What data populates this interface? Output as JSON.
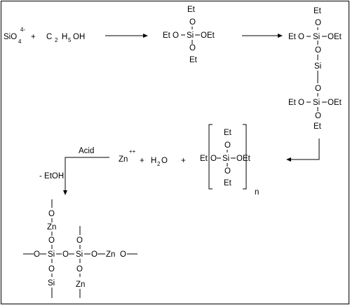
{
  "reactants": {
    "silicate": "SiO",
    "silicate_sub": "4",
    "silicate_charge": "4-",
    "plus": "+",
    "ethanol_c": "C",
    "ethanol_c_sub": "2",
    "ethanol_h": "H",
    "ethanol_h_sub": "5",
    "ethanol_oh": "OH"
  },
  "teos": {
    "top": "Et",
    "o": "O",
    "left": "Et O",
    "si": "Si",
    "right": "OEt",
    "bottom": "Et"
  },
  "dimer": {
    "top": "Et",
    "o": "O",
    "left1": "Et O",
    "si1": "Si",
    "right1": "OEt",
    "bridge_si": "Si",
    "left2": "Et O",
    "si2": "Si",
    "right2": "OEt",
    "bottom": "Et"
  },
  "reagents": {
    "acid": "Acid",
    "zn": "Zn",
    "zn_charge": "++",
    "plus1": "+",
    "water_h": "H",
    "water_sub": "2",
    "water_o": "O",
    "plus2": "+",
    "elim": "- EtOH"
  },
  "polymer": {
    "top": "Et",
    "o": "O",
    "left": "Et",
    "si": "Si",
    "right": "OEt",
    "bottom": "Et",
    "n": "n"
  },
  "product": {
    "o": "O",
    "zn": "Zn",
    "si": "Si"
  }
}
